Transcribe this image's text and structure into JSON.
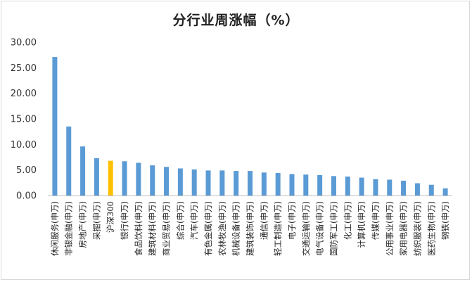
{
  "chart_data": {
    "type": "bar",
    "title": "分行业周涨幅（%）",
    "xlabel": "",
    "ylabel": "",
    "ylim": [
      0,
      30
    ],
    "yticks": [
      "0.00",
      "5.00",
      "10.00",
      "15.00",
      "20.00",
      "25.00",
      "30.00"
    ],
    "grid": false,
    "legend": "none",
    "colors": {
      "default": "#5b9bd5",
      "highlight": "#ffc000"
    },
    "highlight_index": 4,
    "categories": [
      "休闲服务(申万)",
      "非银金融(申万)",
      "房地产(申万)",
      "采掘(申万)",
      "沪深300",
      "银行(申万)",
      "食品饮料(申万)",
      "建筑材料(申万)",
      "商业贸易(申万)",
      "综合(申万)",
      "汽车(申万)",
      "有色金属(申万)",
      "农林牧渔(申万)",
      "机械设备(申万)",
      "建筑装饰(申万)",
      "通信(申万)",
      "轻工制造(申万)",
      "电子(申万)",
      "交通运输(申万)",
      "电气设备(申万)",
      "国防军工(申万)",
      "化工(申万)",
      "计算机(申万)",
      "传媒(申万)",
      "公用事业(申万)",
      "家用电器(申万)",
      "纺织服装(申万)",
      "医药生物(申万)",
      "钢铁(申万)"
    ],
    "values": [
      27.1,
      13.5,
      9.6,
      7.3,
      6.8,
      6.7,
      6.4,
      5.9,
      5.6,
      5.3,
      5.1,
      4.9,
      4.9,
      4.8,
      4.8,
      4.5,
      4.4,
      4.2,
      4.1,
      4.0,
      3.8,
      3.7,
      3.5,
      3.2,
      3.1,
      2.9,
      2.4,
      2.1,
      1.4
    ]
  }
}
